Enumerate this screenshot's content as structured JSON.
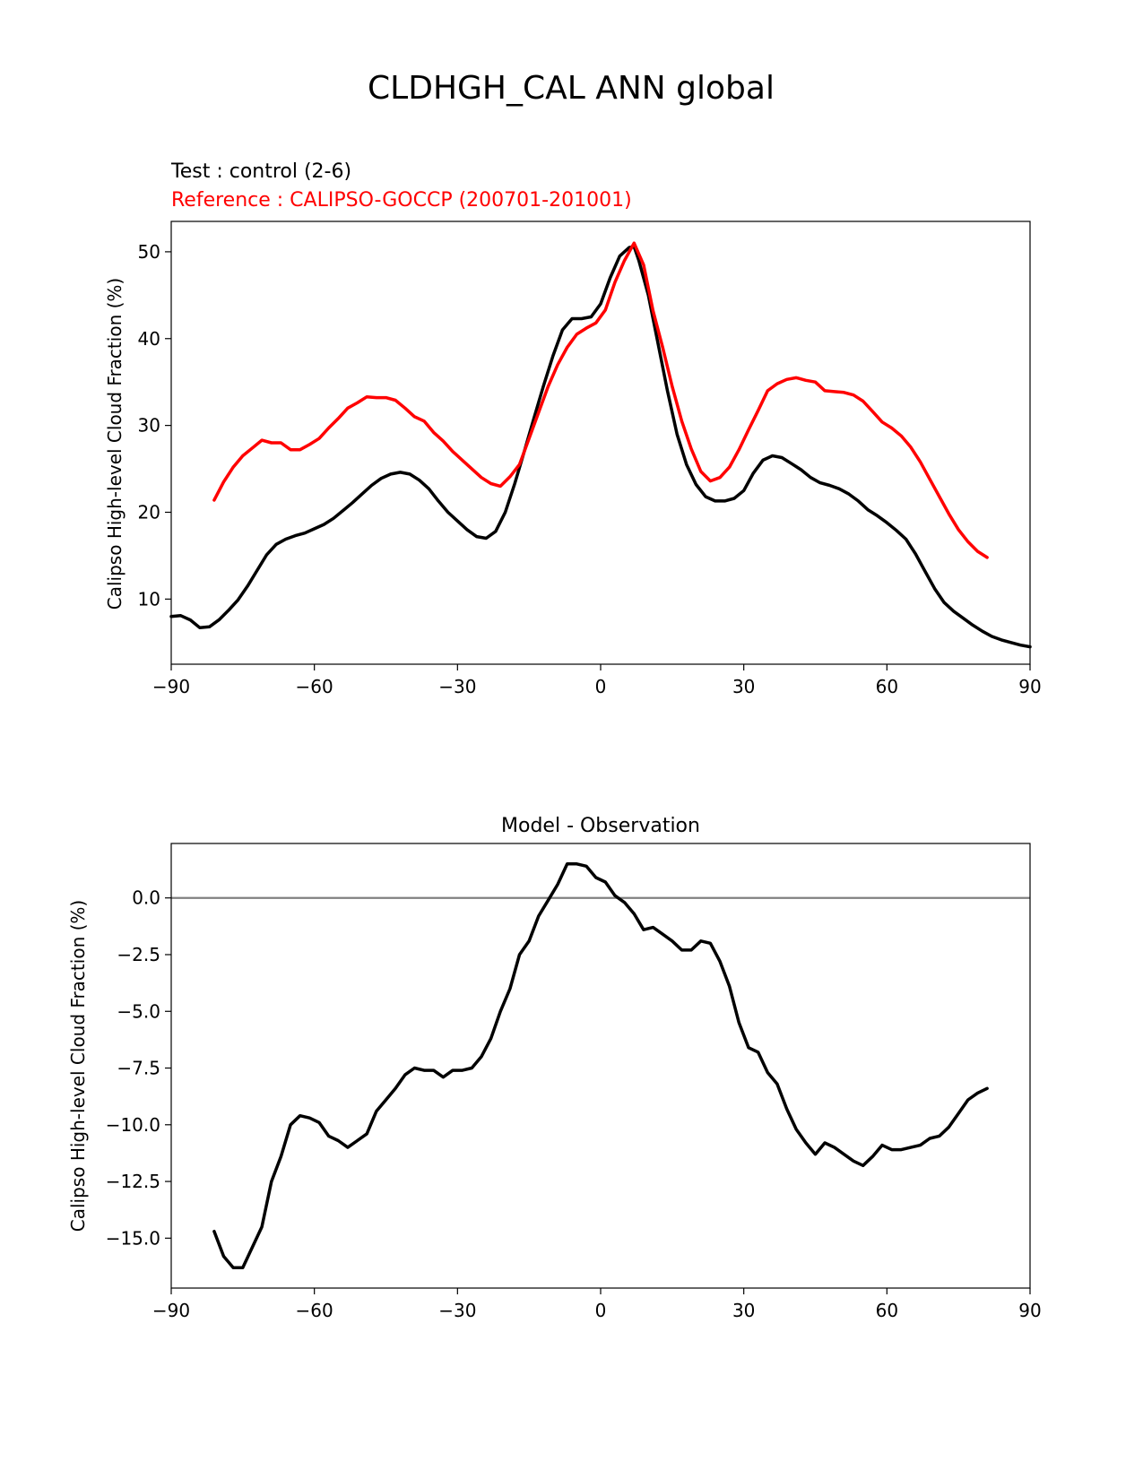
{
  "figure_title": "CLDHGH_CAL ANN global",
  "colors": {
    "test": "#000000",
    "reference": "#ff0000",
    "zero_line": "#808080"
  },
  "chart_data": [
    {
      "type": "line",
      "test_label": "Test : control (2-6)",
      "reference_label": "Reference : CALIPSO-GOCCP (200701-201001)",
      "xlabel": "",
      "ylabel": "Calipso High-level Cloud Fraction (%)",
      "xlim": [
        -90,
        90
      ],
      "ylim": [
        2.5,
        53.5
      ],
      "xticks": [
        -90,
        -60,
        -30,
        0,
        30,
        60,
        90
      ],
      "xtick_labels": [
        "−90",
        "−60",
        "−30",
        "0",
        "30",
        "60",
        "90"
      ],
      "yticks": [
        10,
        20,
        30,
        40,
        50
      ],
      "ytick_labels": [
        "10",
        "20",
        "30",
        "40",
        "50"
      ],
      "series": [
        {
          "name": "Test : control (2-6)",
          "color": "#000000",
          "x": [
            -90,
            -88,
            -86,
            -84,
            -82,
            -80,
            -78,
            -76,
            -74,
            -72,
            -70,
            -68,
            -66,
            -64,
            -62,
            -60,
            -58,
            -56,
            -54,
            -52,
            -50,
            -48,
            -46,
            -44,
            -42,
            -40,
            -38,
            -36,
            -34,
            -32,
            -30,
            -28,
            -26,
            -24,
            -22,
            -20,
            -18,
            -16,
            -14,
            -12,
            -10,
            -8,
            -6,
            -4,
            -2,
            0,
            2,
            4,
            6,
            7,
            8,
            10,
            12,
            14,
            16,
            18,
            20,
            22,
            24,
            26,
            28,
            30,
            32,
            34,
            36,
            38,
            40,
            42,
            44,
            46,
            48,
            50,
            52,
            54,
            56,
            58,
            60,
            62,
            64,
            66,
            68,
            70,
            72,
            74,
            76,
            78,
            80,
            82,
            84,
            86,
            88,
            90
          ],
          "values": [
            8.0,
            8.1,
            7.6,
            6.7,
            6.8,
            7.6,
            8.7,
            9.9,
            11.5,
            13.3,
            15.1,
            16.3,
            16.9,
            17.3,
            17.6,
            18.1,
            18.6,
            19.3,
            20.2,
            21.1,
            22.1,
            23.1,
            23.9,
            24.4,
            24.6,
            24.4,
            23.7,
            22.7,
            21.3,
            20.0,
            19.0,
            18.0,
            17.2,
            17.0,
            17.8,
            20.0,
            23.3,
            27.0,
            30.8,
            34.5,
            38.0,
            41.0,
            42.3,
            42.3,
            42.5,
            44.0,
            47.0,
            49.5,
            50.5,
            50.6,
            49.0,
            45.0,
            39.5,
            34.0,
            29.0,
            25.5,
            23.2,
            21.8,
            21.3,
            21.3,
            21.6,
            22.5,
            24.5,
            26.0,
            26.5,
            26.3,
            25.6,
            24.9,
            24.0,
            23.4,
            23.1,
            22.7,
            22.1,
            21.3,
            20.3,
            19.6,
            18.8,
            17.9,
            16.9,
            15.2,
            13.2,
            11.2,
            9.6,
            8.6,
            7.8,
            7.0,
            6.3,
            5.7,
            5.3,
            5.0,
            4.7,
            4.5
          ]
        },
        {
          "name": "Reference : CALIPSO-GOCCP (200701-201001)",
          "color": "#ff0000",
          "x": [
            -81,
            -79,
            -77,
            -75,
            -73,
            -71,
            -69,
            -67,
            -65,
            -63,
            -61,
            -59,
            -57,
            -55,
            -53,
            -51,
            -49,
            -47,
            -45,
            -43,
            -41,
            -39,
            -37,
            -35,
            -33,
            -31,
            -29,
            -27,
            -25,
            -23,
            -21,
            -19,
            -17,
            -15,
            -13,
            -11,
            -9,
            -7,
            -5,
            -3,
            -1,
            1,
            3,
            5,
            7,
            9,
            11,
            13,
            15,
            17,
            19,
            21,
            23,
            25,
            27,
            29,
            31,
            33,
            35,
            37,
            39,
            41,
            43,
            45,
            47,
            49,
            51,
            53,
            55,
            57,
            59,
            61,
            63,
            65,
            67,
            69,
            71,
            73,
            75,
            77,
            79,
            81
          ],
          "values": [
            21.4,
            23.5,
            25.2,
            26.5,
            27.4,
            28.3,
            28.0,
            28.0,
            27.2,
            27.2,
            27.8,
            28.5,
            29.7,
            30.8,
            32.0,
            32.6,
            33.3,
            33.2,
            33.2,
            32.9,
            32.0,
            31.0,
            30.5,
            29.2,
            28.2,
            27.0,
            26.0,
            25.0,
            24.0,
            23.3,
            23.0,
            24.1,
            25.5,
            28.5,
            31.5,
            34.5,
            37.0,
            39.0,
            40.5,
            41.2,
            41.8,
            43.3,
            46.5,
            49.0,
            51.0,
            48.5,
            43.2,
            39.0,
            34.5,
            30.5,
            27.3,
            24.7,
            23.6,
            24.0,
            25.2,
            27.2,
            29.5,
            31.7,
            34.0,
            34.8,
            35.3,
            35.5,
            35.2,
            35.0,
            34.0,
            33.9,
            33.8,
            33.5,
            32.8,
            31.6,
            30.4,
            29.7,
            28.8,
            27.5,
            25.8,
            23.8,
            21.8,
            19.8,
            18.0,
            16.6,
            15.5,
            14.8
          ]
        }
      ]
    },
    {
      "type": "line",
      "title": "Model - Observation",
      "xlabel": "",
      "ylabel": "Calipso High-level Cloud Fraction (%)",
      "xlim": [
        -90,
        90
      ],
      "ylim": [
        -17.2,
        2.4
      ],
      "xticks": [
        -90,
        -60,
        -30,
        0,
        30,
        60,
        90
      ],
      "xtick_labels": [
        "−90",
        "−60",
        "−30",
        "0",
        "30",
        "60",
        "90"
      ],
      "yticks": [
        0,
        -2.5,
        -5,
        -7.5,
        -10,
        -12.5,
        -15
      ],
      "ytick_labels": [
        "0.0",
        "−2.5",
        "−5.0",
        "−7.5",
        "−10.0",
        "−12.5",
        "−15.0"
      ],
      "zero_line": 0,
      "series": [
        {
          "name": "Model - Observation",
          "color": "#000000",
          "x": [
            -81,
            -79,
            -77,
            -75,
            -73,
            -71,
            -69,
            -67,
            -65,
            -63,
            -61,
            -59,
            -57,
            -55,
            -53,
            -51,
            -49,
            -47,
            -45,
            -43,
            -41,
            -39,
            -37,
            -35,
            -33,
            -31,
            -29,
            -27,
            -25,
            -23,
            -21,
            -19,
            -17,
            -15,
            -13,
            -11,
            -9,
            -7,
            -5,
            -3,
            -1,
            1,
            3,
            5,
            7,
            9,
            11,
            13,
            15,
            17,
            19,
            21,
            23,
            25,
            27,
            29,
            31,
            33,
            35,
            37,
            39,
            41,
            43,
            45,
            47,
            49,
            51,
            53,
            55,
            57,
            59,
            61,
            63,
            65,
            67,
            69,
            71,
            73,
            75,
            77,
            79,
            81
          ],
          "values": [
            -14.7,
            -15.8,
            -16.3,
            -16.3,
            -15.4,
            -14.5,
            -12.5,
            -11.4,
            -10.0,
            -9.6,
            -9.7,
            -9.9,
            -10.5,
            -10.7,
            -11.0,
            -10.7,
            -10.4,
            -9.4,
            -8.9,
            -8.4,
            -7.8,
            -7.5,
            -7.6,
            -7.6,
            -7.9,
            -7.6,
            -7.6,
            -7.5,
            -7.0,
            -6.2,
            -5.0,
            -4.0,
            -2.5,
            -1.9,
            -0.8,
            -0.1,
            0.6,
            1.5,
            1.5,
            1.4,
            0.9,
            0.7,
            0.1,
            -0.2,
            -0.7,
            -1.4,
            -1.3,
            -1.6,
            -1.9,
            -2.3,
            -2.3,
            -1.9,
            -2.0,
            -2.8,
            -3.9,
            -5.5,
            -6.6,
            -6.8,
            -7.7,
            -8.2,
            -9.3,
            -10.2,
            -10.8,
            -11.3,
            -10.8,
            -11.0,
            -11.3,
            -11.6,
            -11.8,
            -11.4,
            -10.9,
            -11.1,
            -11.1,
            -11.0,
            -10.9,
            -10.6,
            -10.5,
            -10.1,
            -9.5,
            -8.9,
            -8.6,
            -8.4
          ]
        }
      ]
    }
  ]
}
